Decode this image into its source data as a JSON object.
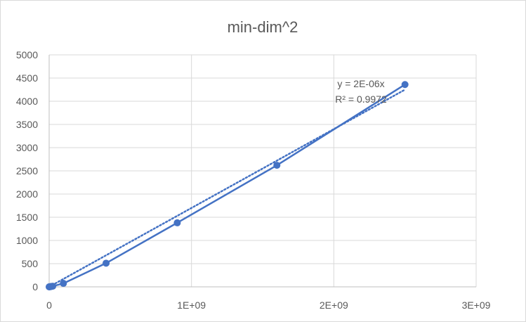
{
  "chart_data": {
    "type": "scatter",
    "title": "min-dim^2",
    "xlabel": "",
    "ylabel": "",
    "xlim": [
      0,
      3000000000
    ],
    "ylim": [
      0,
      5000
    ],
    "x_ticks": [
      0,
      1000000000,
      2000000000,
      3000000000
    ],
    "x_tick_labels": [
      "0",
      "1E+09",
      "2E+09",
      "3E+09"
    ],
    "y_ticks": [
      0,
      500,
      1000,
      1500,
      2000,
      2500,
      3000,
      3500,
      4000,
      4500,
      5000
    ],
    "y_tick_labels": [
      "0",
      "500",
      "1000",
      "1500",
      "2000",
      "2500",
      "3000",
      "3500",
      "4000",
      "4500",
      "5000"
    ],
    "grid": true,
    "legend": "none",
    "series": [
      {
        "x": [
          100,
          1000000,
          4000000,
          9000000,
          16000000,
          25000000,
          100000000,
          400000000,
          900000000,
          1600000000,
          2500000000
        ],
        "y": [
          0,
          0,
          2,
          5,
          9,
          14,
          75,
          510,
          1380,
          2620,
          4360
        ],
        "color": "#4472c4",
        "style": "line+markers"
      }
    ],
    "trendline": {
      "type": "linear-through-origin",
      "slope": 1.7e-06,
      "x_range": [
        0,
        2500000000
      ],
      "style": "dotted",
      "color": "#4472c4",
      "equation": "y = 2E-06x",
      "r_squared": "R² = 0.9972"
    }
  }
}
